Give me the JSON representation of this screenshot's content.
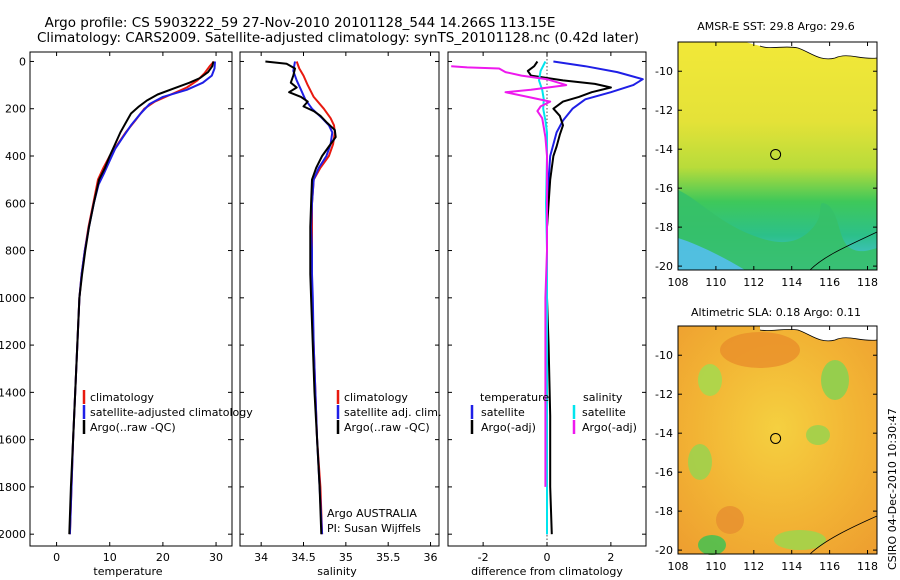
{
  "title_line1": "Argo profile: CS 5903222_59 27-Nov-2010 20101128_544 14.266S 113.15E",
  "title_line2": "Climatology: CARS2009. Satellite-adjusted climatology: synTS_20101128.nc (0.42d later)",
  "stamp": "CSIRO 04-Dec-2010 10:30:47",
  "colors": {
    "climatology": "#e8190f",
    "satellite_adj": "#1f1fe6",
    "argo": "#000000",
    "salinity_sat": "#00e5ee",
    "salinity_argo": "#ee19ee"
  },
  "chart_data": [
    {
      "type": "line",
      "name": "temperature",
      "xlabel": "temperature",
      "ylabel": "",
      "xlim": [
        -5,
        33
      ],
      "ylim": [
        2050,
        0
      ],
      "x_ticks": [
        0,
        10,
        20,
        30
      ],
      "y_ticks": [
        0,
        200,
        400,
        600,
        800,
        1000,
        1200,
        1400,
        1600,
        1800,
        2000
      ],
      "legend": [
        "climatology",
        "satellite-adjusted climatology",
        "Argo(..raw -QC)"
      ],
      "series": [
        {
          "name": "climatology",
          "color_key": "climatology",
          "points": [
            [
              29.6,
              0
            ],
            [
              28.8,
              20
            ],
            [
              27.8,
              50
            ],
            [
              26.5,
              80
            ],
            [
              24.5,
              110
            ],
            [
              21.5,
              140
            ],
            [
              18.5,
              170
            ],
            [
              16.5,
              200
            ],
            [
              14.8,
              250
            ],
            [
              13,
              300
            ],
            [
              11.5,
              350
            ],
            [
              10,
              400
            ],
            [
              8.8,
              450
            ],
            [
              7.8,
              500
            ],
            [
              6.9,
              600
            ],
            [
              6,
              700
            ],
            [
              5.3,
              800
            ],
            [
              4.7,
              900
            ],
            [
              4.3,
              1000
            ],
            [
              3.9,
              1200
            ],
            [
              3.5,
              1400
            ],
            [
              3.1,
              1600
            ],
            [
              2.8,
              1800
            ],
            [
              2.5,
              2000
            ]
          ]
        },
        {
          "name": "satellite-adjusted climatology",
          "color_key": "satellite_adj",
          "points": [
            [
              29.8,
              0
            ],
            [
              29.7,
              30
            ],
            [
              29.2,
              60
            ],
            [
              27.5,
              90
            ],
            [
              24.5,
              120
            ],
            [
              20,
              150
            ],
            [
              17.5,
              180
            ],
            [
              15.8,
              220
            ],
            [
              14,
              270
            ],
            [
              12.5,
              320
            ],
            [
              11,
              370
            ],
            [
              10,
              420
            ],
            [
              9,
              470
            ],
            [
              7.9,
              520
            ],
            [
              7,
              600
            ],
            [
              6.1,
              700
            ],
            [
              5.3,
              800
            ],
            [
              4.7,
              900
            ],
            [
              4.3,
              1000
            ],
            [
              3.9,
              1200
            ],
            [
              3.5,
              1400
            ],
            [
              3.1,
              1600
            ],
            [
              2.8,
              1800
            ],
            [
              2.5,
              2000
            ]
          ]
        },
        {
          "name": "Argo(..raw -QC)",
          "color_key": "argo",
          "points": [
            [
              29.5,
              0
            ],
            [
              29.3,
              20
            ],
            [
              28.5,
              45
            ],
            [
              27,
              70
            ],
            [
              25,
              90
            ],
            [
              22,
              115
            ],
            [
              19,
              140
            ],
            [
              17,
              165
            ],
            [
              15.5,
              190
            ],
            [
              14,
              220
            ],
            [
              13,
              260
            ],
            [
              12,
              300
            ],
            [
              11,
              350
            ],
            [
              10,
              400
            ],
            [
              9.1,
              450
            ],
            [
              8,
              500
            ],
            [
              7,
              600
            ],
            [
              6.1,
              700
            ],
            [
              5.4,
              800
            ],
            [
              4.8,
              900
            ],
            [
              4.3,
              1000
            ],
            [
              3.9,
              1200
            ],
            [
              3.5,
              1400
            ],
            [
              3.1,
              1600
            ],
            [
              2.7,
              1800
            ],
            [
              2.4,
              2000
            ]
          ]
        }
      ]
    },
    {
      "type": "line",
      "name": "salinity",
      "xlabel": "salinity",
      "ylabel": "",
      "xlim": [
        33.75,
        36.1
      ],
      "ylim": [
        2050,
        0
      ],
      "x_ticks": [
        34,
        34.5,
        35,
        35.5,
        36
      ],
      "x_tick_labels": [
        "34",
        "34.5",
        "35",
        "35.5",
        "36"
      ],
      "legend": [
        "climatology",
        "satellite adj. clim.",
        "Argo(..raw -QC)"
      ],
      "annotation_line1": "Argo AUSTRALIA",
      "annotation_line2": "PI: Susan Wijffels",
      "series": [
        {
          "name": "climatology",
          "color_key": "climatology",
          "points": [
            [
              34.42,
              0
            ],
            [
              34.45,
              30
            ],
            [
              34.5,
              60
            ],
            [
              34.55,
              100
            ],
            [
              34.62,
              150
            ],
            [
              34.74,
              200
            ],
            [
              34.82,
              240
            ],
            [
              34.86,
              270
            ],
            [
              34.87,
              300
            ],
            [
              34.85,
              350
            ],
            [
              34.8,
              400
            ],
            [
              34.7,
              450
            ],
            [
              34.62,
              500
            ],
            [
              34.6,
              600
            ],
            [
              34.6,
              700
            ],
            [
              34.6,
              800
            ],
            [
              34.6,
              900
            ],
            [
              34.6,
              1000
            ],
            [
              34.62,
              1200
            ],
            [
              34.64,
              1400
            ],
            [
              34.66,
              1600
            ],
            [
              34.7,
              1800
            ],
            [
              34.72,
              2000
            ]
          ]
        },
        {
          "name": "satellite adj. clim.",
          "color_key": "satellite_adj",
          "points": [
            [
              34.4,
              0
            ],
            [
              34.38,
              40
            ],
            [
              34.42,
              80
            ],
            [
              34.47,
              120
            ],
            [
              34.52,
              160
            ],
            [
              34.6,
              200
            ],
            [
              34.72,
              240
            ],
            [
              34.8,
              270
            ],
            [
              34.84,
              300
            ],
            [
              34.82,
              350
            ],
            [
              34.77,
              400
            ],
            [
              34.68,
              450
            ],
            [
              34.62,
              500
            ],
            [
              34.6,
              600
            ],
            [
              34.59,
              700
            ],
            [
              34.6,
              800
            ],
            [
              34.6,
              900
            ],
            [
              34.61,
              1000
            ],
            [
              34.62,
              1200
            ],
            [
              34.64,
              1400
            ],
            [
              34.66,
              1600
            ],
            [
              34.69,
              1800
            ],
            [
              34.72,
              2000
            ]
          ]
        },
        {
          "name": "Argo(..raw -QC)",
          "color_key": "argo",
          "points": [
            [
              34.05,
              0
            ],
            [
              34.3,
              10
            ],
            [
              34.4,
              30
            ],
            [
              34.38,
              60
            ],
            [
              34.35,
              90
            ],
            [
              34.42,
              110
            ],
            [
              34.33,
              130
            ],
            [
              34.47,
              150
            ],
            [
              34.55,
              170
            ],
            [
              34.5,
              190
            ],
            [
              34.62,
              210
            ],
            [
              34.7,
              230
            ],
            [
              34.78,
              260
            ],
            [
              34.87,
              290
            ],
            [
              34.88,
              320
            ],
            [
              34.8,
              360
            ],
            [
              34.72,
              400
            ],
            [
              34.65,
              450
            ],
            [
              34.6,
              500
            ],
            [
              34.59,
              600
            ],
            [
              34.58,
              700
            ],
            [
              34.58,
              800
            ],
            [
              34.58,
              900
            ],
            [
              34.59,
              1000
            ],
            [
              34.61,
              1200
            ],
            [
              34.63,
              1400
            ],
            [
              34.66,
              1600
            ],
            [
              34.69,
              1800
            ],
            [
              34.71,
              2000
            ]
          ]
        }
      ]
    },
    {
      "type": "line",
      "name": "difference from climatology",
      "xlabel": "difference from climatology",
      "ylabel": "",
      "xlim": [
        -3.1,
        3.1
      ],
      "ylim": [
        2050,
        0
      ],
      "x_ticks": [
        -2,
        0,
        2
      ],
      "legend_temperature_title": "temperature",
      "legend_salinity_title": "salinity",
      "legend": [
        "satellite",
        "Argo(-adj)",
        "satellite",
        "Argo(-adj)"
      ],
      "series": [
        {
          "name": "temperature satellite",
          "color_key": "satellite_adj",
          "points": [
            [
              0.2,
              0
            ],
            [
              1.2,
              20
            ],
            [
              2.2,
              45
            ],
            [
              3.0,
              75
            ],
            [
              2.7,
              100
            ],
            [
              2,
              130
            ],
            [
              1.2,
              160
            ],
            [
              0.8,
              200
            ],
            [
              0.5,
              250
            ],
            [
              0.3,
              300
            ],
            [
              0.2,
              350
            ],
            [
              0.1,
              400
            ],
            [
              0.05,
              500
            ],
            [
              0,
              700
            ],
            [
              0,
              1000
            ],
            [
              0,
              1500
            ],
            [
              0,
              2000
            ]
          ]
        },
        {
          "name": "temperature Argo(-adj)",
          "color_key": "argo",
          "points": [
            [
              -0.3,
              0
            ],
            [
              -0.4,
              20
            ],
            [
              -0.6,
              40
            ],
            [
              -0.5,
              60
            ],
            [
              0.5,
              80
            ],
            [
              1.5,
              95
            ],
            [
              2,
              110
            ],
            [
              1.4,
              130
            ],
            [
              1,
              150
            ],
            [
              0.5,
              170
            ],
            [
              0.2,
              200
            ],
            [
              0.4,
              230
            ],
            [
              0.5,
              270
            ],
            [
              0.4,
              310
            ],
            [
              0.3,
              360
            ],
            [
              0.2,
              400
            ],
            [
              0.15,
              450
            ],
            [
              0.1,
              500
            ],
            [
              0.05,
              600
            ],
            [
              0,
              700
            ],
            [
              0,
              800
            ],
            [
              0,
              900
            ],
            [
              0,
              1000
            ],
            [
              0.05,
              1200
            ],
            [
              0.1,
              1500
            ],
            [
              0.1,
              1800
            ],
            [
              0.15,
              2000
            ]
          ]
        },
        {
          "name": "salinity satellite",
          "color_key": "salinity_sat",
          "points": [
            [
              -0.05,
              0
            ],
            [
              -0.2,
              40
            ],
            [
              -0.25,
              80
            ],
            [
              -0.15,
              120
            ],
            [
              -0.1,
              160
            ],
            [
              -0.12,
              200
            ],
            [
              -0.05,
              250
            ],
            [
              0,
              300
            ],
            [
              0,
              400
            ],
            [
              -0.03,
              600
            ],
            [
              0,
              800
            ],
            [
              0,
              1000
            ],
            [
              0,
              1500
            ],
            [
              0,
              2000
            ]
          ]
        },
        {
          "name": "salinity Argo(-adj)",
          "color_key": "salinity_argo",
          "points": [
            [
              -3,
              20
            ],
            [
              -2.5,
              25
            ],
            [
              -1.5,
              30
            ],
            [
              -1.3,
              45
            ],
            [
              -0.8,
              60
            ],
            [
              0,
              75
            ],
            [
              0.6,
              100
            ],
            [
              -0.5,
              120
            ],
            [
              -1.3,
              130
            ],
            [
              -0.6,
              150
            ],
            [
              0.1,
              170
            ],
            [
              -0.2,
              190
            ],
            [
              -0.3,
              210
            ],
            [
              -0.15,
              240
            ],
            [
              -0.1,
              280
            ],
            [
              -0.05,
              320
            ],
            [
              0,
              400
            ],
            [
              0,
              600
            ],
            [
              0,
              800
            ],
            [
              -0.05,
              1000
            ],
            [
              -0.05,
              1500
            ],
            [
              -0.05,
              1800
            ]
          ]
        }
      ]
    },
    {
      "type": "heatmap",
      "name": "sst_map",
      "title": "AMSR-E SST: 29.8 Argo: 29.6",
      "xlim": [
        108,
        118.5
      ],
      "ylim": [
        -20.2,
        -8.5
      ],
      "x_ticks": [
        108,
        110,
        112,
        114,
        116,
        118
      ],
      "y_ticks": [
        -10,
        -12,
        -14,
        -16,
        -18,
        -20
      ],
      "profile_marker": [
        113.15,
        -14.27
      ]
    },
    {
      "type": "heatmap",
      "name": "sla_map",
      "title": "Altimetric SLA: 0.18 Argo: 0.11",
      "xlim": [
        108,
        118.5
      ],
      "ylim": [
        -20.2,
        -8.5
      ],
      "x_ticks": [
        108,
        110,
        112,
        114,
        116,
        118
      ],
      "y_ticks": [
        -10,
        -12,
        -14,
        -16,
        -18,
        -20
      ],
      "profile_marker": [
        113.15,
        -14.27
      ]
    }
  ]
}
